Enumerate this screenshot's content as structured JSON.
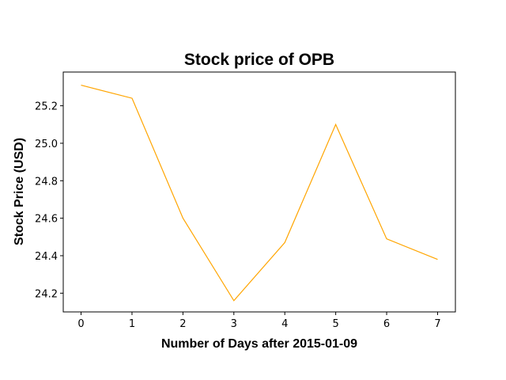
{
  "chart_data": {
    "type": "line",
    "title": "Stock price of OPB",
    "xlabel": "Number of Days after 2015-01-09",
    "ylabel": "Stock Price (USD)",
    "x": [
      0,
      1,
      2,
      3,
      4,
      5,
      6,
      7
    ],
    "series": [
      {
        "values": [
          25.31,
          25.24,
          24.6,
          24.16,
          24.47,
          25.1,
          24.49,
          24.38
        ],
        "color": "#ffa500"
      }
    ],
    "xlim": [
      -0.35,
      7.35
    ],
    "ylim": [
      24.1,
      25.38
    ],
    "xticks": [
      "0",
      "1",
      "2",
      "3",
      "4",
      "5",
      "6",
      "7"
    ],
    "yticks": [
      "24.2",
      "24.4",
      "24.6",
      "24.8",
      "25.0",
      "25.2"
    ],
    "grid": false,
    "legend": false
  }
}
